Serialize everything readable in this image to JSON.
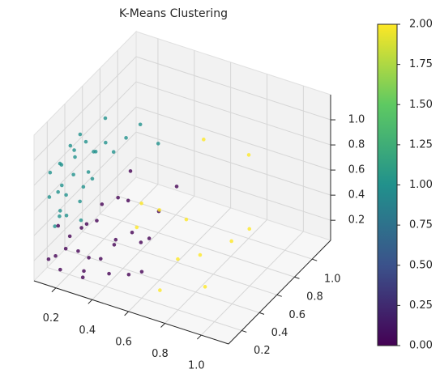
{
  "chart_data": {
    "type": "scatter3d",
    "title": "K-Means Clustering",
    "colormap": "viridis",
    "x": [
      0.12,
      0.15,
      0.18,
      0.2,
      0.14,
      0.22,
      0.25,
      0.17,
      0.13,
      0.19,
      0.24,
      0.28,
      0.3,
      0.16,
      0.21,
      0.11,
      0.26,
      0.23,
      0.32,
      0.14,
      0.18,
      0.27,
      0.2,
      0.35,
      0.15,
      0.29,
      0.12,
      0.22,
      0.4,
      0.19,
      0.15,
      0.2,
      0.25,
      0.18,
      0.3,
      0.22,
      0.35,
      0.28,
      0.4,
      0.16,
      0.33,
      0.45,
      0.26,
      0.38,
      0.5,
      0.42,
      0.2,
      0.3,
      0.55,
      0.48,
      0.24,
      0.36,
      0.6,
      0.32,
      0.45,
      0.14,
      0.52,
      0.27,
      0.55,
      0.6,
      0.7,
      0.85,
      0.75,
      0.9,
      0.8,
      0.95,
      0.7,
      0.9,
      0.5,
      0.65
    ],
    "y": [
      0.15,
      0.2,
      0.3,
      0.25,
      0.1,
      0.35,
      0.4,
      0.18,
      0.22,
      0.12,
      0.28,
      0.45,
      0.5,
      0.35,
      0.15,
      0.3,
      0.2,
      0.55,
      0.6,
      0.45,
      0.08,
      0.32,
      0.42,
      0.7,
      0.27,
      0.15,
      0.38,
      0.05,
      0.8,
      0.5,
      0.15,
      0.1,
      0.2,
      0.25,
      0.15,
      0.3,
      0.25,
      0.35,
      0.3,
      0.05,
      0.1,
      0.4,
      0.45,
      0.5,
      0.6,
      0.2,
      0.4,
      0.55,
      0.7,
      0.3,
      0.08,
      0.4,
      0.2,
      0.65,
      0.5,
      0.2,
      0.45,
      0.28,
      0.3,
      0.4,
      0.5,
      0.9,
      0.3,
      0.6,
      0.45,
      0.7,
      0.2,
      0.3,
      0.35,
      0.8
    ],
    "z": [
      0.85,
      0.9,
      0.95,
      0.8,
      0.7,
      1.0,
      0.9,
      0.75,
      0.65,
      0.6,
      0.7,
      0.95,
      0.85,
      0.85,
      0.55,
      0.8,
      0.65,
      1.05,
      0.9,
      0.95,
      0.5,
      0.75,
      0.7,
      0.95,
      0.6,
      0.55,
      0.9,
      0.62,
      0.75,
      0.8,
      0.2,
      0.15,
      0.25,
      0.3,
      0.1,
      0.35,
      0.2,
      0.4,
      0.3,
      0.25,
      0.2,
      0.35,
      0.45,
      0.5,
      0.4,
      0.15,
      0.3,
      0.45,
      0.55,
      0.1,
      0.35,
      0.25,
      0.25,
      0.6,
      0.2,
      0.4,
      0.3,
      0.15,
      0.7,
      0.6,
      0.5,
      0.8,
      0.35,
      0.35,
      0.3,
      0.4,
      0.15,
      0.2,
      0.45,
      0.9
    ],
    "values": [
      1,
      1,
      1,
      1,
      1,
      1,
      1,
      1,
      1,
      1,
      1,
      1,
      1,
      1,
      1,
      1,
      1,
      1,
      1,
      1,
      1,
      1,
      1,
      1,
      1,
      1,
      1,
      1,
      1,
      1,
      0,
      0,
      0,
      0,
      0,
      0,
      0,
      0,
      0,
      0,
      0,
      0,
      0,
      0,
      0,
      0,
      0,
      0,
      0,
      0,
      0,
      0,
      0,
      0,
      0,
      0,
      0,
      0,
      2,
      2,
      2,
      2,
      2,
      2,
      2,
      2,
      2,
      2,
      2,
      2
    ],
    "xlim": [
      0.08,
      1.15
    ],
    "ylim": [
      0.05,
      1.21
    ],
    "zlim": [
      0.04,
      1.2
    ],
    "xticks": [
      0.2,
      0.4,
      0.6,
      0.8,
      {
        "value": 1,
        "label": "1.0"
      }
    ],
    "yticks": [
      0.2,
      0.4,
      0.6,
      0.8,
      {
        "value": 1,
        "label": "1.0"
      }
    ],
    "zticks": [
      0.2,
      0.4,
      0.6,
      0.8,
      {
        "value": 1,
        "label": "1.0"
      }
    ],
    "clim": [
      0,
      2
    ],
    "cticks": [
      {
        "value": 0,
        "label": "0.00"
      },
      {
        "value": 0.25,
        "label": "0.25"
      },
      {
        "value": 0.5,
        "label": "0.50"
      },
      {
        "value": 0.75,
        "label": "0.75"
      },
      {
        "value": 1,
        "label": "1.00"
      },
      {
        "value": 1.25,
        "label": "1.25"
      },
      {
        "value": 1.5,
        "label": "1.50"
      },
      {
        "value": 1.75,
        "label": "1.75"
      },
      {
        "value": 2,
        "label": "2.00"
      }
    ],
    "grid": true
  }
}
